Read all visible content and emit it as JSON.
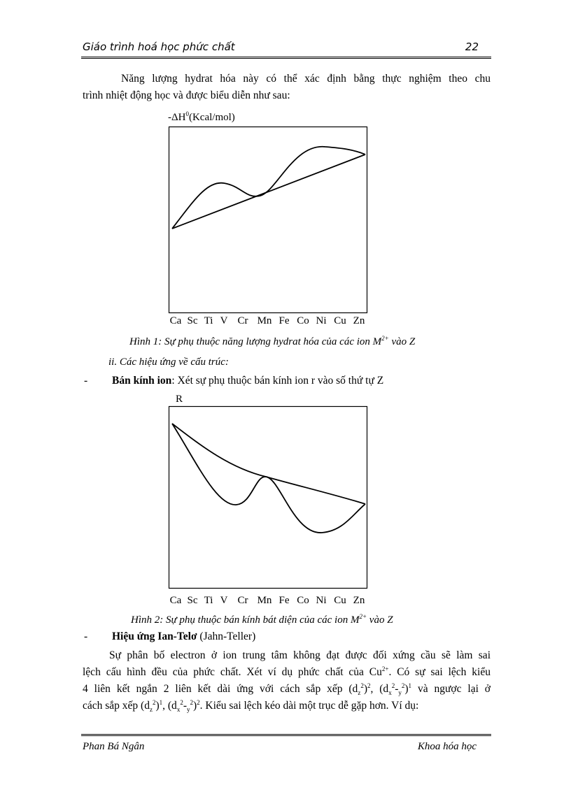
{
  "header": {
    "title": "Giáo trình hoá học phức chất",
    "page_number": "22"
  },
  "intro_lines": [
    [
      {
        "t": "Năng lượng hydrat hóa này có thể xác định bằng thực nghiệm theo chu"
      }
    ],
    [
      {
        "t": "trình nhiệt động học và được biểu diễn như sau:"
      }
    ]
  ],
  "figure1": {
    "y_label": "-ΔH",
    "y_label_sup": "0",
    "y_label_unit": "(Kcal/mol)",
    "x_labels": [
      "Ca",
      "Sc",
      "Ti",
      "V",
      "Cr",
      "Mn",
      "Fe",
      "Co",
      "Ni",
      "Cu",
      "Zn"
    ],
    "caption_pre": "Hình 1: Sự phụ thuộc năng lượng hydrat hóa của các ion M",
    "caption_sup": "2+",
    "caption_post": " vào Z"
  },
  "section": {
    "heading": "ii. Các hiệu ứng về cấu trúc:"
  },
  "bullet1": {
    "dash": "-",
    "bold": "Bán kính ion",
    "rest": ": Xét sự phụ thuộc bán kính ion r vào số thứ tự Z"
  },
  "figure2": {
    "y_label": "R",
    "x_labels": [
      "Ca",
      "Sc",
      "Ti",
      "V",
      "Cr",
      "Mn",
      "Fe",
      "Co",
      "Ni",
      "Cu",
      "Zn"
    ],
    "caption_pre": "Hình 2: Sự phụ thuộc bán kính bát diện của các ion M",
    "caption_sup": "2+",
    "caption_post": " vào Z"
  },
  "bullet2": {
    "dash": "-",
    "bold": "Hiệu ứng Ian-Telơ",
    "rest": " (Jahn-Teller)"
  },
  "para_lines": [
    [
      {
        "t": "Sự phân bố electron ở ion trung tâm không đạt được đối xứng cầu sẽ làm sai"
      }
    ],
    [
      {
        "t": "lệch cấu hình đều của phức chất. Xét ví dụ phức chất của Cu"
      },
      {
        "sup": "2+"
      },
      {
        "t": ". Có sự sai lệch kiểu"
      }
    ],
    [
      {
        "t": "4 liên kết ngắn 2 liên kết dài ứng với cách sắp xếp (d"
      },
      {
        "sub": "z"
      },
      {
        "sup": "2"
      },
      {
        "t": ")"
      },
      {
        "sup": "2"
      },
      {
        "t": ", (d"
      },
      {
        "sub": "x"
      },
      {
        "sup": "2"
      },
      {
        "t": "-"
      },
      {
        "sub": "y"
      },
      {
        "sup": "2"
      },
      {
        "t": ")"
      },
      {
        "sup": "1"
      },
      {
        "t": " và ngược lại ở"
      }
    ],
    [
      {
        "t": "cách sắp xếp (d"
      },
      {
        "sub": "z"
      },
      {
        "sup": "2"
      },
      {
        "t": ")"
      },
      {
        "sup": "1"
      },
      {
        "t": ", (d"
      },
      {
        "sub": "x"
      },
      {
        "sup": "2"
      },
      {
        "t": "-"
      },
      {
        "sub": "y"
      },
      {
        "sup": "2"
      },
      {
        "t": ")"
      },
      {
        "sup": "2"
      },
      {
        "t": ". Kiểu sai lệch kéo dài một trục dễ gặp hơn. Ví dụ:"
      }
    ]
  ],
  "footer": {
    "author": "Phan Bá Ngân",
    "department": "Khoa hóa học"
  }
}
